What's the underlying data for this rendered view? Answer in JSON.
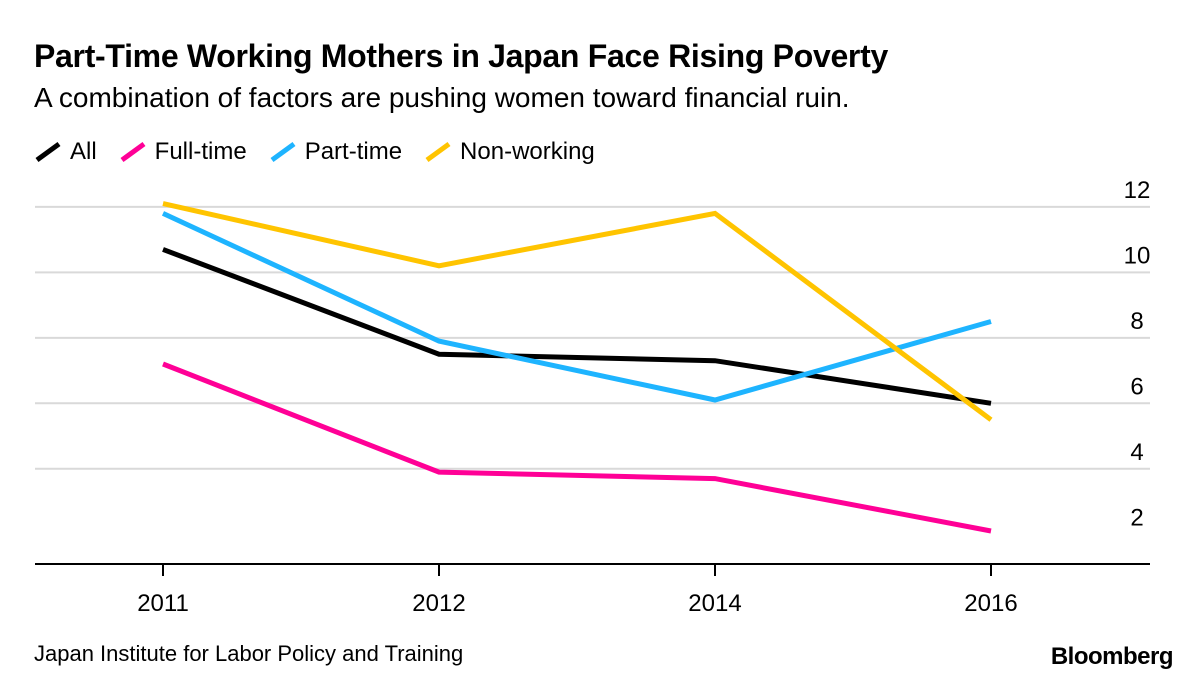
{
  "chart_data": {
    "type": "line",
    "title": "Part-Time Working Mothers in Japan Face Rising Poverty",
    "subtitle": "A combination of factors are pushing women toward financial ruin.",
    "categories": [
      "2011",
      "2012",
      "2014",
      "2016"
    ],
    "series": [
      {
        "name": "All",
        "color": "#000000",
        "values": [
          10.7,
          7.5,
          7.3,
          6.0
        ]
      },
      {
        "name": "Full-time",
        "color": "#ff0096",
        "values": [
          7.2,
          3.9,
          3.7,
          2.1
        ]
      },
      {
        "name": "Part-time",
        "color": "#1eb4ff",
        "values": [
          11.8,
          7.9,
          6.1,
          8.5
        ]
      },
      {
        "name": "Non-working",
        "color": "#ffc400",
        "values": [
          12.1,
          10.2,
          11.8,
          5.5
        ]
      }
    ],
    "yticks": [
      "2",
      "4",
      "6",
      "8",
      "10",
      "12"
    ],
    "ylim": [
      1,
      12.5
    ],
    "y_axis_side": "right",
    "grid": true,
    "legend_position": "top-left"
  },
  "source": "Japan Institute for Labor Policy and Training",
  "brand": "Bloomberg"
}
